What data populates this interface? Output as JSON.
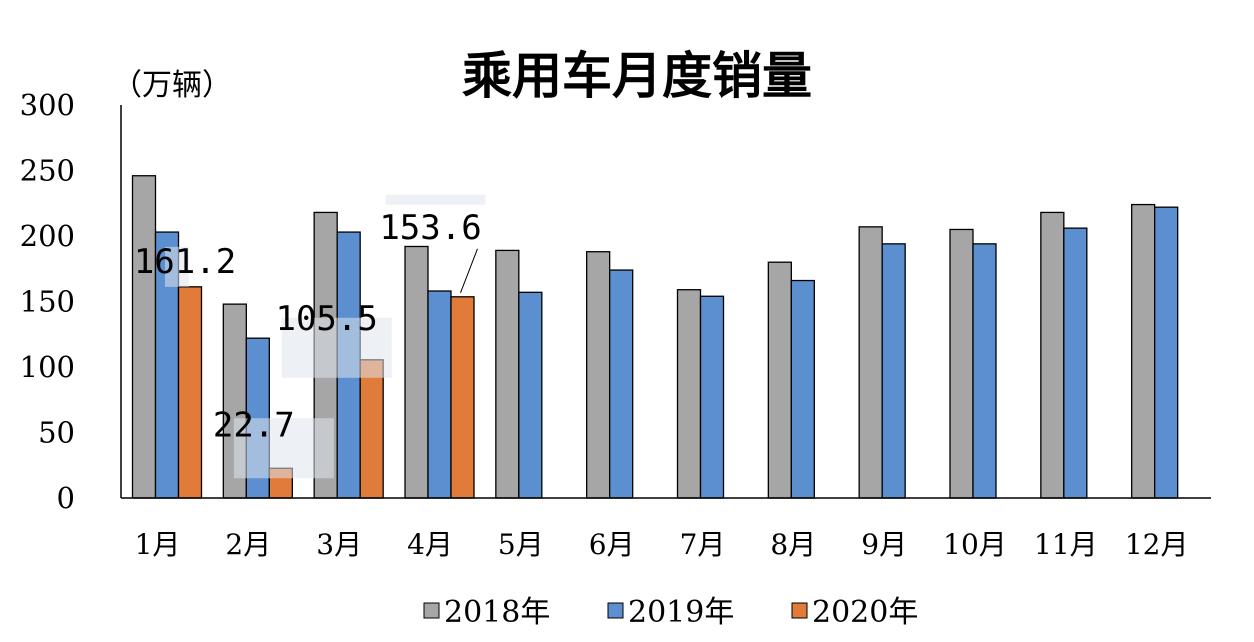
{
  "chart_data": {
    "type": "bar",
    "title": "乘用车月度销量",
    "ylabel": "（万辆）",
    "xlabel": "",
    "ylim": [
      0,
      300
    ],
    "yticks": [
      "0",
      "50",
      "100",
      "150",
      "200",
      "250",
      "300"
    ],
    "categories": [
      "1月",
      "2月",
      "3月",
      "4月",
      "5月",
      "6月",
      "7月",
      "8月",
      "9月",
      "10月",
      "11月",
      "12月"
    ],
    "series": [
      {
        "name": "2018年",
        "color": "#a6a6a6",
        "values": [
          246,
          148,
          218,
          192,
          189,
          188,
          159,
          180,
          207,
          205,
          218,
          224
        ]
      },
      {
        "name": "2019年",
        "color": "#5b8fcf",
        "values": [
          203,
          122,
          203,
          158,
          157,
          174,
          154,
          166,
          194,
          194,
          206,
          222
        ]
      },
      {
        "name": "2020年",
        "color": "#e07b39",
        "values": [
          161.2,
          22.7,
          105.5,
          153.6,
          null,
          null,
          null,
          null,
          null,
          null,
          null,
          null
        ]
      }
    ],
    "data_labels": [
      "161.2",
      "22.7",
      "105.5",
      "153.6"
    ],
    "grid": false,
    "legend_position": "bottom"
  }
}
